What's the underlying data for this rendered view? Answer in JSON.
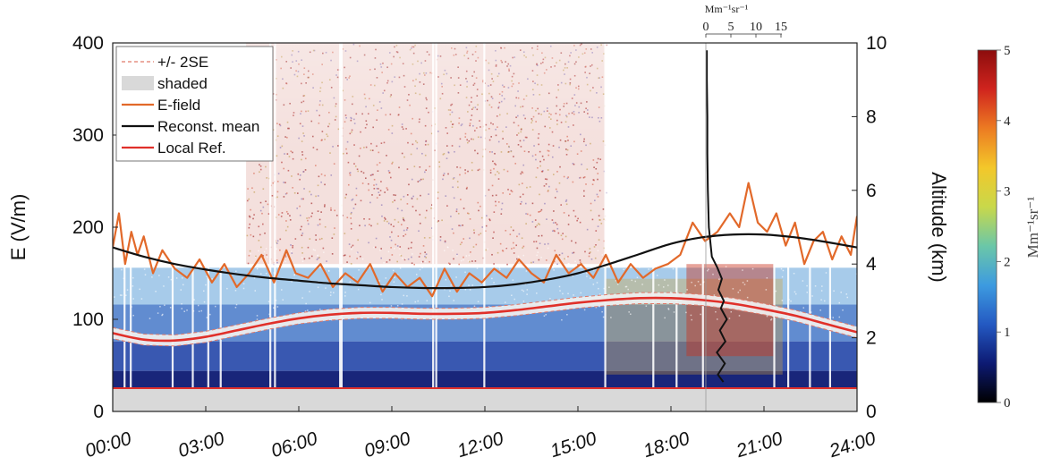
{
  "chart_data": {
    "type": "line",
    "left_axis": {
      "label": "E (V/m)",
      "range": [
        0,
        400
      ],
      "ticks": [
        "0",
        "100",
        "200",
        "300",
        "400"
      ]
    },
    "right_axis": {
      "label": "Altitude (km)",
      "range": [
        0,
        10
      ],
      "ticks": [
        "0",
        "2",
        "4",
        "6",
        "8",
        "10"
      ]
    },
    "x_axis": {
      "range_hours": [
        0,
        24
      ],
      "ticks": [
        "00:00",
        "03:00",
        "06:00",
        "09:00",
        "12:00",
        "15:00",
        "18:00",
        "21:00",
        "24:00"
      ]
    },
    "top_axis": {
      "label": "Mm⁻¹sr⁻¹",
      "ticks": [
        "0",
        "5",
        "10",
        "15"
      ]
    },
    "colorbar": {
      "label": "Mm⁻¹sr⁻¹",
      "range": [
        0,
        5
      ],
      "ticks": [
        "0",
        "1",
        "2",
        "3",
        "4",
        "5"
      ],
      "colors": [
        "#000000",
        "#0d1a73",
        "#2459c2",
        "#3d9be0",
        "#6bc7a8",
        "#c9d84a",
        "#f3c72a",
        "#ec7b22",
        "#d0241e",
        "#8c0d0d"
      ]
    },
    "legend": {
      "position": "top-left",
      "items": [
        {
          "label": "+/- 2SE",
          "color": "#e07a6a",
          "style": "dashed"
        },
        {
          "label": "shaded",
          "color": "#d9d9d9",
          "style": "patch"
        },
        {
          "label": "E-field",
          "color": "#e2692a",
          "style": "line"
        },
        {
          "label": "Reconst. mean",
          "color": "#111111",
          "style": "line"
        },
        {
          "label": "Local Ref.",
          "color": "#e0302a",
          "style": "line"
        }
      ]
    },
    "series": [
      {
        "name": "E-field",
        "color": "#e2692a",
        "x": [
          0.0,
          0.2,
          0.4,
          0.6,
          0.8,
          1.0,
          1.3,
          1.6,
          2.0,
          2.4,
          2.8,
          3.2,
          3.6,
          4.0,
          4.4,
          4.8,
          5.2,
          5.6,
          5.9,
          6.3,
          6.7,
          7.1,
          7.5,
          7.9,
          8.3,
          8.7,
          9.1,
          9.5,
          9.9,
          10.3,
          10.7,
          11.1,
          11.5,
          11.9,
          12.3,
          12.7,
          13.1,
          13.5,
          13.9,
          14.3,
          14.7,
          15.1,
          15.5,
          15.9,
          16.3,
          16.7,
          17.1,
          17.5,
          17.9,
          18.3,
          18.7,
          19.1,
          19.5,
          19.9,
          20.2,
          20.5,
          20.8,
          21.1,
          21.4,
          21.7,
          22.0,
          22.3,
          22.6,
          22.9,
          23.2,
          23.5,
          23.8,
          24.0
        ],
        "values": [
          178,
          215,
          160,
          195,
          170,
          190,
          150,
          175,
          155,
          145,
          165,
          140,
          160,
          135,
          150,
          170,
          140,
          175,
          150,
          145,
          160,
          135,
          150,
          140,
          160,
          130,
          150,
          135,
          145,
          125,
          155,
          130,
          150,
          140,
          155,
          145,
          165,
          150,
          140,
          170,
          150,
          160,
          145,
          170,
          140,
          160,
          145,
          155,
          160,
          170,
          205,
          185,
          195,
          215,
          200,
          248,
          205,
          195,
          215,
          180,
          205,
          160,
          185,
          195,
          165,
          190,
          170,
          212
        ]
      },
      {
        "name": "Reconst. mean",
        "color": "#111111",
        "x": [
          0,
          1,
          2,
          3,
          4,
          5,
          6,
          7,
          8,
          9,
          10,
          11,
          12,
          13,
          14,
          15,
          16,
          17,
          18,
          19,
          20,
          21,
          22,
          23,
          24
        ],
        "values": [
          178,
          168,
          160,
          154,
          149,
          145,
          142,
          139,
          137,
          135,
          134,
          134,
          135,
          138,
          143,
          150,
          160,
          171,
          182,
          189,
          192,
          192,
          189,
          184,
          178
        ]
      },
      {
        "name": "Local Ref.",
        "color": "#e0302a",
        "x": [
          0,
          1,
          2,
          3,
          4,
          5,
          6,
          7,
          8,
          9,
          10,
          11,
          12,
          13,
          14,
          15,
          16,
          17,
          18,
          19,
          20,
          21,
          22,
          23,
          24
        ],
        "values": [
          85,
          78,
          77,
          81,
          88,
          95,
          101,
          105,
          107,
          107,
          106,
          106,
          107,
          110,
          114,
          118,
          121,
          123,
          123,
          121,
          117,
          111,
          104,
          95,
          86
        ]
      }
    ],
    "confidence_band_halfwidth": 6,
    "backscatter_profile": {
      "color": "#111111",
      "altitude_km": [
        0.8,
        1.0,
        1.3,
        1.6,
        1.9,
        2.2,
        2.5,
        2.8,
        3.0,
        3.3,
        3.6,
        3.9,
        4.2,
        4.6,
        5.0,
        6.0,
        7.0,
        8.0,
        9.0,
        9.8
      ],
      "values": [
        3.5,
        2.4,
        3.8,
        2.2,
        3.9,
        2.8,
        4.2,
        3.0,
        3.6,
        2.5,
        3.2,
        2.3,
        1.2,
        0.9,
        0.6,
        0.4,
        0.3,
        0.3,
        0.2,
        0.2
      ]
    }
  }
}
